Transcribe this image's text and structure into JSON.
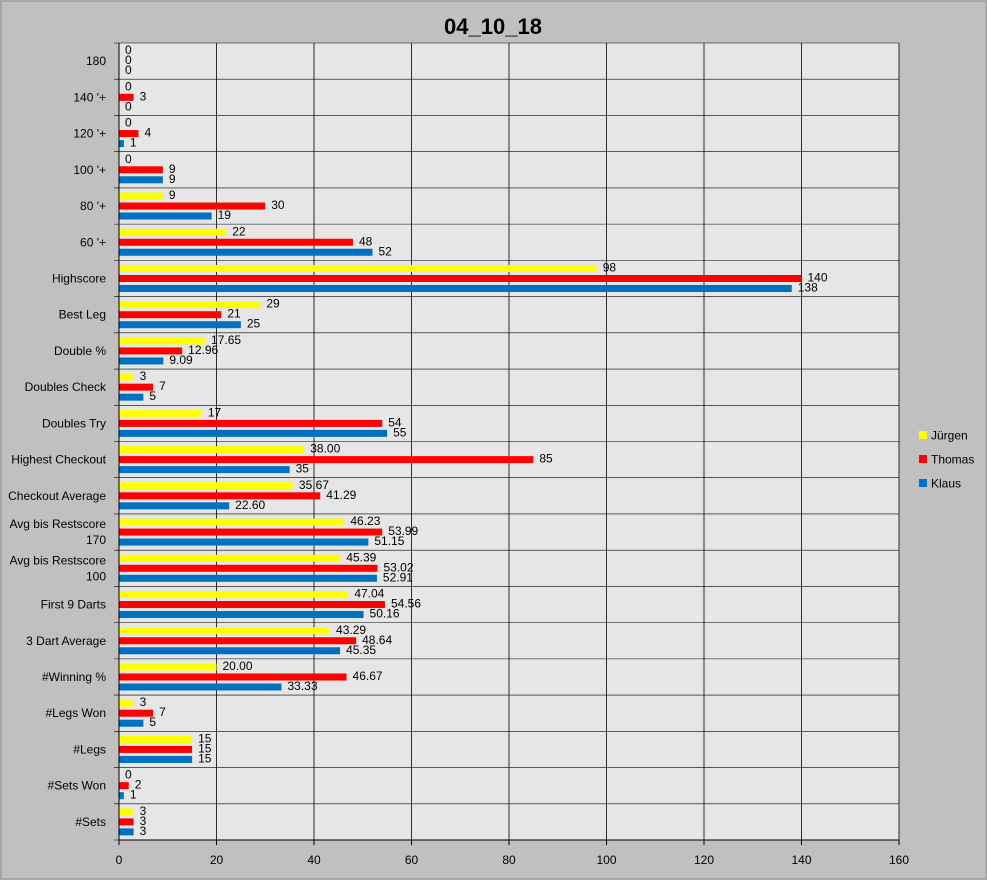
{
  "chart_data": {
    "type": "bar",
    "orientation": "horizontal",
    "title": "04_10_18",
    "xlim": [
      0,
      160
    ],
    "x_ticks": [
      0,
      20,
      40,
      60,
      80,
      100,
      120,
      140,
      160
    ],
    "grid": "vertical",
    "legend_position": "right",
    "categories": [
      "180",
      "140 '+",
      "120 '+",
      "100 '+",
      "80 '+",
      "60 '+",
      "Highscore",
      "Best Leg",
      "Double %",
      "Doubles Check",
      "Doubles Try",
      "Highest Checkout",
      "Checkout Average",
      "Avg bis Restscore\n170",
      "Avg bis Restscore\n100",
      "First 9 Darts",
      "3 Dart Average",
      "#Winning %",
      "#Legs Won",
      "#Legs",
      "#Sets Won",
      "#Sets"
    ],
    "series": [
      {
        "name": "Jürgen",
        "color": "#ffff00",
        "values": [
          0,
          0,
          0,
          0,
          9,
          22,
          98,
          29,
          17.65,
          3,
          17,
          38.0,
          35.67,
          46.23,
          45.39,
          47.04,
          43.29,
          20.0,
          3,
          15,
          0,
          3
        ],
        "labels": [
          "0",
          "0",
          "0",
          "0",
          "9",
          "22",
          "98",
          "29",
          "17.65",
          "3",
          "17",
          "38.00",
          "35.67",
          "46.23",
          "45.39",
          "47.04",
          "43.29",
          "20.00",
          "3",
          "15",
          "0",
          "3"
        ]
      },
      {
        "name": "Thomas",
        "color": "#ff0000",
        "values": [
          0,
          3,
          4,
          9,
          30,
          48,
          140,
          21,
          12.96,
          7,
          54,
          85,
          41.29,
          53.99,
          53.02,
          54.56,
          48.64,
          46.67,
          7,
          15,
          2,
          3
        ],
        "labels": [
          "0",
          "3",
          "4",
          "9",
          "30",
          "48",
          "140",
          "21",
          "12.96",
          "7",
          "54",
          "85",
          "41.29",
          "53.99",
          "53.02",
          "54.56",
          "48.64",
          "46.67",
          "7",
          "15",
          "2",
          "3"
        ]
      },
      {
        "name": "Klaus",
        "color": "#0070c0",
        "values": [
          0,
          0,
          1,
          9,
          19,
          52,
          138,
          25,
          9.09,
          5,
          55,
          35,
          22.6,
          51.15,
          52.91,
          50.16,
          45.35,
          33.33,
          5,
          15,
          1,
          3
        ],
        "labels": [
          "0",
          "0",
          "1",
          "9",
          "19",
          "52",
          "138",
          "25",
          "9.09",
          "5",
          "55",
          "35",
          "22.60",
          "51.15",
          "52.91",
          "50.16",
          "45.35",
          "33.33",
          "5",
          "15",
          "1",
          "3"
        ]
      }
    ]
  }
}
